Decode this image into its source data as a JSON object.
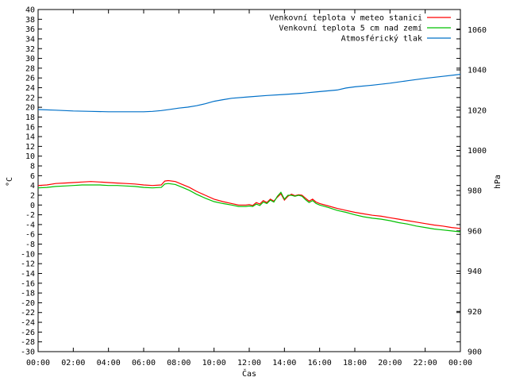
{
  "chart_data": {
    "type": "line",
    "xlabel": "Čas",
    "ylabel": "°C",
    "y2label": "hPa",
    "x_ticks": [
      "00:00",
      "02:00",
      "04:00",
      "06:00",
      "08:00",
      "10:00",
      "12:00",
      "14:00",
      "16:00",
      "18:00",
      "20:00",
      "22:00",
      "00:00"
    ],
    "xlim_hours": [
      0,
      24
    ],
    "ylim": [
      -30,
      40
    ],
    "y_ticks": [
      40,
      38,
      36,
      34,
      32,
      30,
      28,
      26,
      24,
      22,
      20,
      18,
      16,
      14,
      12,
      10,
      8,
      6,
      4,
      2,
      0,
      -2,
      -4,
      -6,
      -8,
      -10,
      -12,
      -14,
      -16,
      -18,
      -20,
      -22,
      -24,
      -26,
      -28,
      -30
    ],
    "y2lim": [
      900,
      1070
    ],
    "y2_ticks": [
      1060,
      1040,
      1020,
      1000,
      980,
      960,
      940,
      920,
      900
    ],
    "grid": false,
    "legend_position": "top-right",
    "series": [
      {
        "name": "Venkovní teplota v meteo stanici",
        "axis": "left",
        "color": "#ff0000",
        "x": [
          0,
          0.5,
          1,
          1.5,
          2,
          2.5,
          3,
          3.5,
          4,
          4.5,
          5,
          5.5,
          6,
          6.5,
          7,
          7.2,
          7.4,
          7.8,
          8.2,
          8.6,
          9,
          9.5,
          10,
          10.5,
          11,
          11.4,
          11.8,
          12,
          12.2,
          12.4,
          12.6,
          12.8,
          13,
          13.2,
          13.4,
          13.6,
          13.8,
          14,
          14.2,
          14.4,
          14.6,
          14.8,
          15,
          15.2,
          15.4,
          15.6,
          15.8,
          16,
          16.5,
          17,
          17.5,
          18,
          18.5,
          19,
          19.5,
          20,
          20.5,
          21,
          21.5,
          22,
          22.5,
          23,
          23.5,
          24
        ],
        "y": [
          4.0,
          4.1,
          4.4,
          4.5,
          4.6,
          4.7,
          4.8,
          4.7,
          4.6,
          4.5,
          4.4,
          4.3,
          4.1,
          4.0,
          4.1,
          4.9,
          5.0,
          4.8,
          4.2,
          3.6,
          2.8,
          2.0,
          1.2,
          0.7,
          0.3,
          0,
          0,
          0.1,
          -0.1,
          0.5,
          0.2,
          0.9,
          0.5,
          1.2,
          0.8,
          1.6,
          2.3,
          1.0,
          1.8,
          2.2,
          1.9,
          2.1,
          2.0,
          1.4,
          0.8,
          1.2,
          0.6,
          0.3,
          -0.2,
          -0.7,
          -1.1,
          -1.5,
          -1.8,
          -2.1,
          -2.3,
          -2.6,
          -2.9,
          -3.2,
          -3.5,
          -3.8,
          -4.1,
          -4.3,
          -4.6,
          -4.8
        ]
      },
      {
        "name": "Venkovní teplota 5 cm nad zemí",
        "axis": "left",
        "color": "#00c000",
        "x": [
          0,
          0.5,
          1,
          1.5,
          2,
          2.5,
          3,
          3.5,
          4,
          4.5,
          5,
          5.5,
          6,
          6.5,
          7,
          7.2,
          7.4,
          7.8,
          8.2,
          8.6,
          9,
          9.5,
          10,
          10.5,
          11,
          11.4,
          11.8,
          12,
          12.2,
          12.4,
          12.6,
          12.8,
          13,
          13.2,
          13.4,
          13.6,
          13.8,
          14,
          14.2,
          14.4,
          14.6,
          14.8,
          15,
          15.2,
          15.4,
          15.6,
          15.8,
          16,
          16.5,
          17,
          17.5,
          18,
          18.5,
          19,
          19.5,
          20,
          20.5,
          21,
          21.5,
          22,
          22.5,
          23,
          23.5,
          24
        ],
        "y": [
          3.5,
          3.6,
          3.8,
          3.9,
          4.0,
          4.1,
          4.1,
          4.1,
          4.0,
          4.0,
          3.9,
          3.8,
          3.6,
          3.5,
          3.6,
          4.3,
          4.4,
          4.2,
          3.6,
          3.0,
          2.2,
          1.4,
          0.7,
          0.3,
          0,
          -0.3,
          -0.3,
          -0.2,
          -0.3,
          0.2,
          -0.1,
          0.6,
          0.3,
          1.0,
          0.6,
          1.8,
          2.6,
          1.2,
          2.0,
          2.0,
          1.8,
          2.0,
          1.8,
          1.1,
          0.5,
          0.9,
          0.3,
          0,
          -0.5,
          -1.1,
          -1.5,
          -2.0,
          -2.4,
          -2.7,
          -2.9,
          -3.2,
          -3.6,
          -3.9,
          -4.3,
          -4.6,
          -4.9,
          -5.1,
          -5.3,
          -5.5
        ]
      },
      {
        "name": "Atmosférický tlak",
        "axis": "right",
        "color": "#0070c8",
        "x": [
          0,
          1,
          2,
          3,
          4,
          5,
          6,
          6.5,
          7,
          7.5,
          8,
          8.5,
          9,
          9.5,
          10,
          10.5,
          11,
          12,
          13,
          14,
          15,
          16,
          17,
          17.5,
          18,
          19,
          20,
          21,
          22,
          23,
          24
        ],
        "y": [
          1020.3,
          1020.0,
          1019.6,
          1019.4,
          1019.2,
          1019.2,
          1019.2,
          1019.4,
          1019.8,
          1020.4,
          1021.0,
          1021.5,
          1022.2,
          1023.2,
          1024.4,
          1025.2,
          1025.9,
          1026.6,
          1027.3,
          1027.8,
          1028.4,
          1029.2,
          1030.0,
          1031.0,
          1031.6,
          1032.4,
          1033.4,
          1034.6,
          1035.8,
          1036.8,
          1037.8
        ]
      }
    ]
  }
}
